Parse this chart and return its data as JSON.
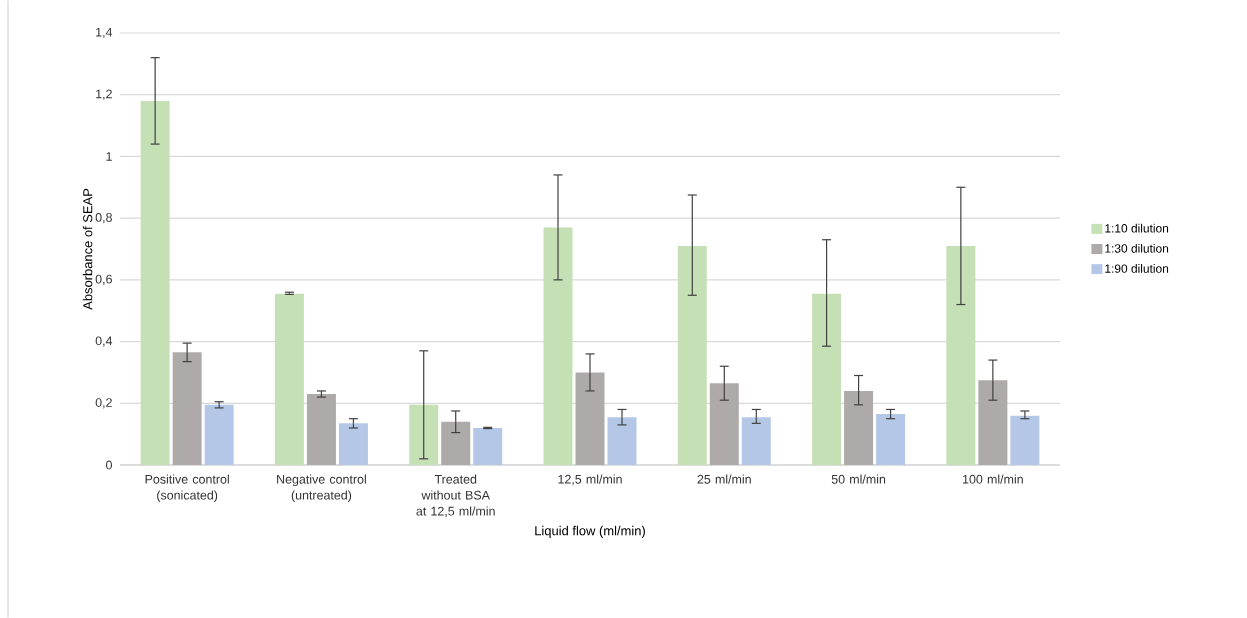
{
  "chart_data": {
    "type": "bar",
    "xlabel": "Liquid flow (ml/min)",
    "ylabel": "Absorbance of SEAP",
    "categories": [
      "Positive control (sonicated)",
      "Negative control (untreated)",
      "Treated without BSA at 12,5 ml/min",
      "12,5 ml/min",
      "25 ml/min",
      "50 ml/min",
      "100 ml/min"
    ],
    "series": [
      {
        "name": "1:10 dilution",
        "color": "#c5e0b4",
        "values": [
          1.18,
          0.555,
          0.195,
          0.77,
          0.71,
          0.555,
          0.71
        ],
        "errors": [
          [
            1.04,
            1.32
          ],
          [
            0.553,
            0.56
          ],
          [
            0.02,
            0.37
          ],
          [
            0.6,
            0.94
          ],
          [
            0.55,
            0.875
          ],
          [
            0.385,
            0.73
          ],
          [
            0.52,
            0.9
          ]
        ]
      },
      {
        "name": "1:30 dilution",
        "color": "#aeaaaa",
        "values": [
          0.365,
          0.23,
          0.14,
          0.3,
          0.265,
          0.24,
          0.275
        ],
        "errors": [
          [
            0.335,
            0.395
          ],
          [
            0.22,
            0.24
          ],
          [
            0.105,
            0.175
          ],
          [
            0.24,
            0.36
          ],
          [
            0.21,
            0.32
          ],
          [
            0.195,
            0.29
          ],
          [
            0.21,
            0.34
          ]
        ]
      },
      {
        "name": "1:90 dilution",
        "color": "#b4c7e7",
        "values": [
          0.195,
          0.135,
          0.12,
          0.155,
          0.155,
          0.165,
          0.16
        ],
        "errors": [
          [
            0.185,
            0.205
          ],
          [
            0.12,
            0.15
          ],
          [
            0.118,
            0.122
          ],
          [
            0.13,
            0.18
          ],
          [
            0.135,
            0.18
          ],
          [
            0.15,
            0.18
          ],
          [
            0.15,
            0.175
          ]
        ]
      }
    ],
    "ylim": [
      0,
      1.4
    ],
    "yticks": [
      0,
      {
        "value": 0.2,
        "label": "0,2"
      },
      {
        "value": 0.4,
        "label": "0,4"
      },
      {
        "value": 0.6,
        "label": "0,6"
      },
      {
        "value": 0.8,
        "label": "0,8"
      },
      1,
      {
        "value": 1.2,
        "label": "1,2"
      },
      {
        "value": 1.4,
        "label": "1,4"
      }
    ],
    "grid": "y",
    "legend": "right"
  }
}
